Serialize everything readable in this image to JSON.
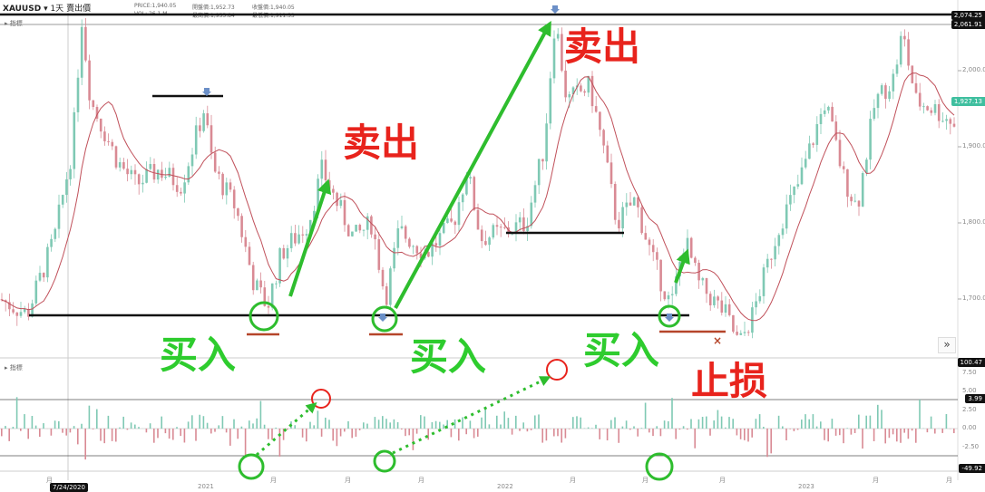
{
  "header": {
    "symbol": "XAUUSD",
    "interval": "1天",
    "price_type": "賣出價",
    "price": "PRICE:1,940.05",
    "vol": "VOL: 26.1 M",
    "open": "開盤價:1,952.73",
    "close": "收盤價:1,940.05",
    "high": "最高價:1,955.84",
    "low": "最低價:1,911.53",
    "panel_main": "指標",
    "panel_osc": "指標"
  },
  "annotations": {
    "sell": "卖出",
    "buy": "买入",
    "stop": "止损"
  },
  "colors": {
    "up": "#7fc9b4",
    "down": "#d98a94",
    "ma": "#c0505a",
    "green": "#2ebd2e",
    "red": "#e8231c"
  },
  "badges": {
    "high": "2,074.25",
    "level": "2,061.91",
    "last": "1,927.13",
    "osc_top": "100.47",
    "osc_line": "3.99",
    "osc_bottom": "-49.92"
  },
  "date_badge": "7/24/2020",
  "more_button": "»",
  "chart_data": {
    "type": "candlestick",
    "y_ticks": [
      "2,000.00",
      "1,900.00",
      "1,800.00",
      "1,700.00"
    ],
    "osc_ticks": [
      "7.50",
      "5.00",
      "2.50",
      "0.00",
      "-2.50"
    ],
    "x_ticks": [
      "月",
      "2021",
      "月",
      "月",
      "月",
      "2022",
      "月",
      "月",
      "月",
      "2023",
      "月",
      "月"
    ],
    "ylim": [
      1620,
      2080
    ],
    "price_path": [
      [
        0,
        1700
      ],
      [
        30,
        1680
      ],
      [
        60,
        1780
      ],
      [
        80,
        1900
      ],
      [
        90,
        2070
      ],
      [
        100,
        1960
      ],
      [
        130,
        1880
      ],
      [
        150,
        1850
      ],
      [
        175,
        1870
      ],
      [
        200,
        1850
      ],
      [
        225,
        1950
      ],
      [
        235,
        1870
      ],
      [
        260,
        1820
      ],
      [
        280,
        1720
      ],
      [
        295,
        1690
      ],
      [
        310,
        1760
      ],
      [
        340,
        1800
      ],
      [
        355,
        1870
      ],
      [
        370,
        1830
      ],
      [
        390,
        1780
      ],
      [
        410,
        1800
      ],
      [
        425,
        1700
      ],
      [
        440,
        1790
      ],
      [
        470,
        1760
      ],
      [
        500,
        1800
      ],
      [
        515,
        1870
      ],
      [
        530,
        1780
      ],
      [
        560,
        1790
      ],
      [
        580,
        1800
      ],
      [
        600,
        1900
      ],
      [
        612,
        2070
      ],
      [
        625,
        1960
      ],
      [
        650,
        1980
      ],
      [
        665,
        1900
      ],
      [
        680,
        1800
      ],
      [
        700,
        1830
      ],
      [
        720,
        1750
      ],
      [
        740,
        1690
      ],
      [
        755,
        1780
      ],
      [
        770,
        1720
      ],
      [
        800,
        1680
      ],
      [
        815,
        1640
      ],
      [
        830,
        1680
      ],
      [
        860,
        1800
      ],
      [
        880,
        1850
      ],
      [
        910,
        1960
      ],
      [
        930,
        1860
      ],
      [
        945,
        1820
      ],
      [
        965,
        1960
      ],
      [
        985,
        1990
      ],
      [
        995,
        2050
      ],
      [
        1010,
        1960
      ],
      [
        1030,
        1950
      ],
      [
        1056,
        1927
      ]
    ]
  }
}
